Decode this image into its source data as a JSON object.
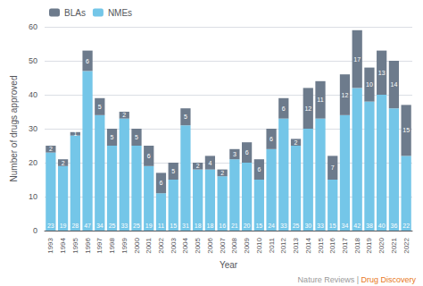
{
  "chart_data": {
    "type": "bar",
    "stacked": true,
    "data_labels": true,
    "grid": true,
    "legend": "upper left",
    "xlabel": "Year",
    "ylabel": "Number of drugs approved",
    "categories": [
      "1993",
      "1994",
      "1995",
      "1996",
      "1997",
      "1998",
      "1999",
      "2000",
      "2001",
      "2002",
      "2003",
      "2004",
      "2005",
      "2006",
      "2007",
      "2008",
      "2009",
      "2010",
      "2011",
      "2012",
      "2013",
      "2014",
      "2015",
      "2016",
      "2017",
      "2018",
      "2019",
      "2020",
      "2021",
      "2022"
    ],
    "series": [
      {
        "name": "NMEs",
        "color": "#74c6e8",
        "values": [
          23,
          19,
          28,
          47,
          34,
          25,
          33,
          25,
          19,
          11,
          15,
          31,
          18,
          18,
          16,
          21,
          20,
          15,
          24,
          33,
          25,
          30,
          33,
          15,
          34,
          42,
          38,
          40,
          36,
          22
        ]
      },
      {
        "name": "BLAs",
        "color": "#6d7b8c",
        "values": [
          2,
          2,
          1,
          6,
          5,
          5,
          2,
          5,
          6,
          6,
          5,
          5,
          2,
          4,
          2,
          3,
          6,
          6,
          6,
          6,
          2,
          12,
          11,
          7,
          12,
          17,
          10,
          13,
          14,
          15
        ]
      }
    ],
    "ylim": [
      0,
      60
    ],
    "yticks": [
      0,
      10,
      20,
      30,
      40,
      50,
      60
    ],
    "annotations": [
      {
        "text": "Nature Reviews | ",
        "color": "#999999"
      },
      {
        "text": "Drug Discovery",
        "color": "#e87722"
      }
    ]
  }
}
